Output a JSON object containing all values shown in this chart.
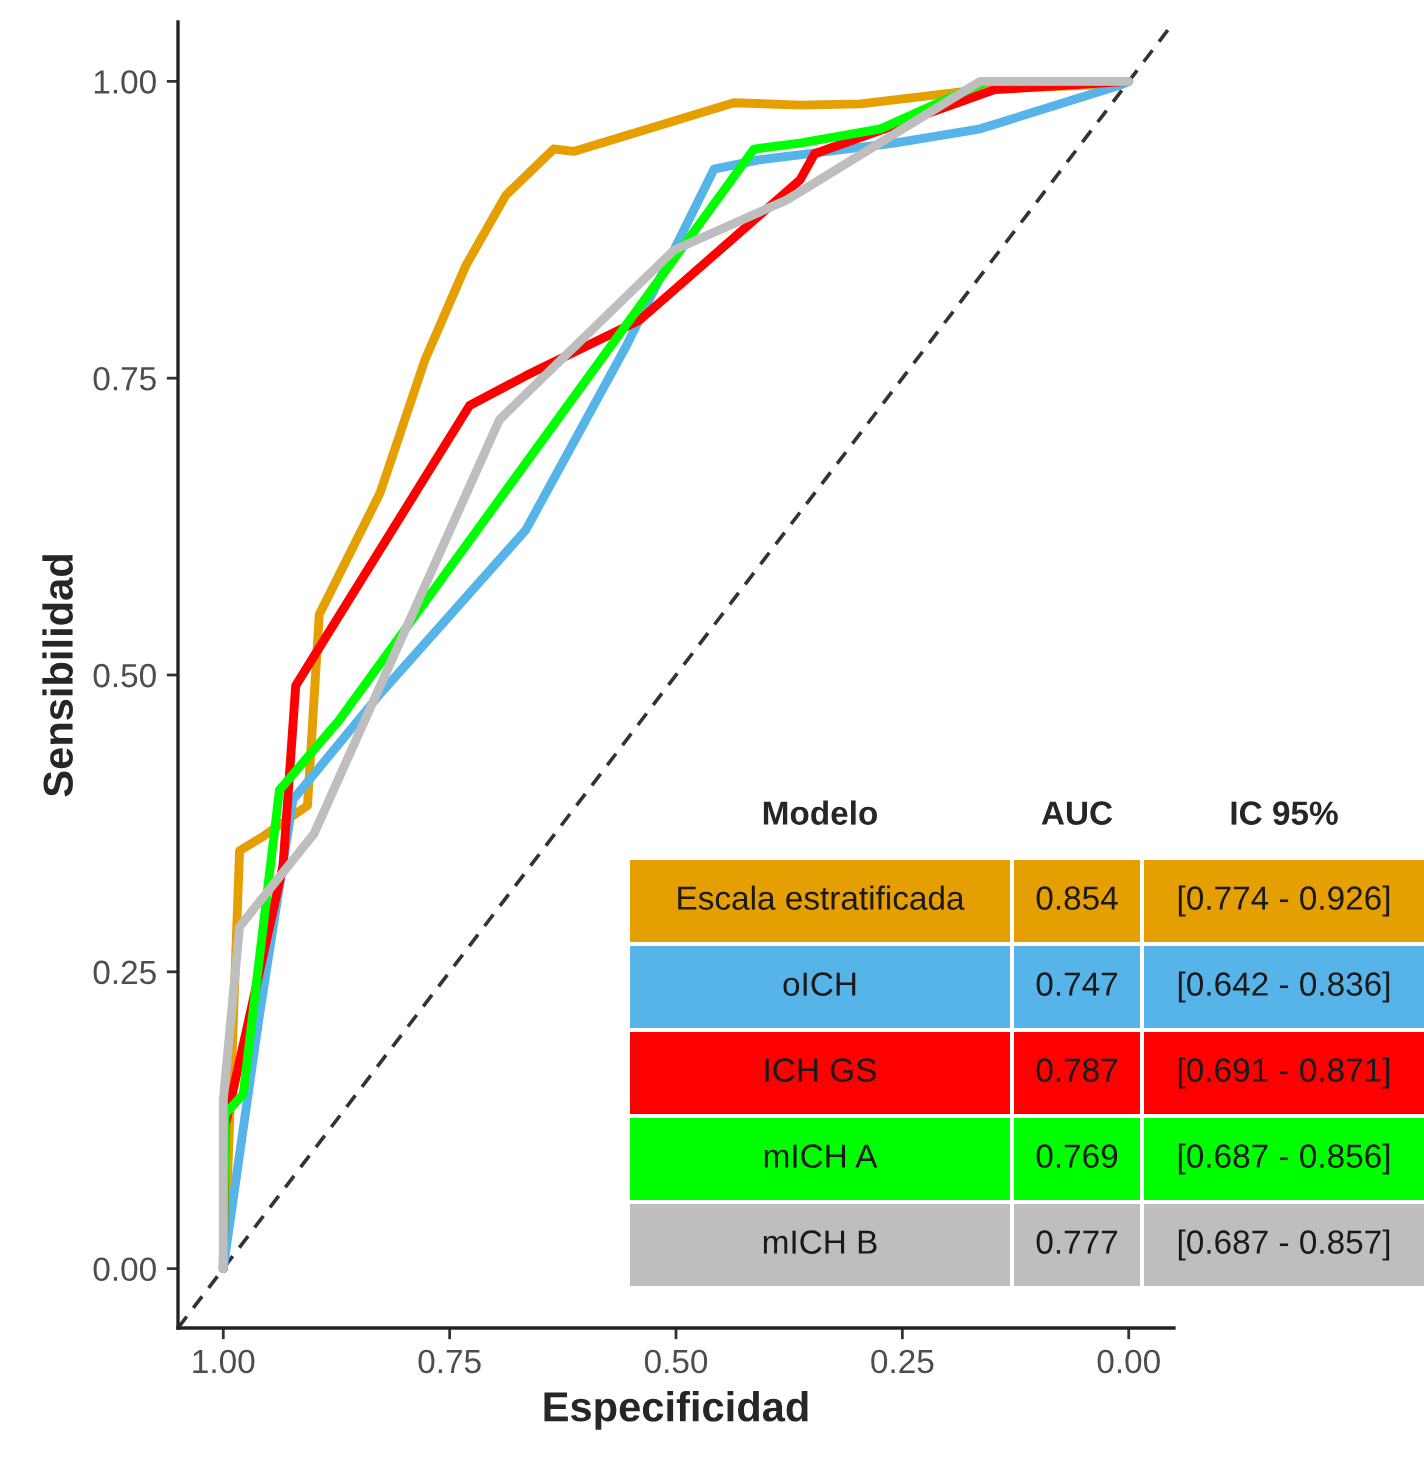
{
  "chart_data": {
    "type": "line",
    "xlabel": "Especificidad",
    "ylabel": "Sensibilidad",
    "xlim": [
      1.05,
      -0.05
    ],
    "ylim": [
      -0.05,
      1.05
    ],
    "xticks": [
      {
        "value": 1,
        "label": "1.00"
      },
      {
        "value": 0.75,
        "label": "0.75"
      },
      {
        "value": 0.5,
        "label": "0.50"
      },
      {
        "value": 0.25,
        "label": "0.25"
      },
      {
        "value": 0,
        "label": "0.00"
      }
    ],
    "yticks": [
      {
        "value": 0,
        "label": "0.00"
      },
      {
        "value": 0.25,
        "label": "0.25"
      },
      {
        "value": 0.5,
        "label": "0.50"
      },
      {
        "value": 0.75,
        "label": "0.75"
      },
      {
        "value": 1,
        "label": "1.00"
      }
    ],
    "grid": false,
    "legend": "bottom right",
    "legend_title": "Modelo",
    "line_style": "solid",
    "marker": "none",
    "series": [
      {
        "name": "Escala estratificada",
        "color": "#e69f00",
        "x": [
          1,
          0.998,
          0.982,
          0.956,
          0.907,
          0.894,
          0.827,
          0.777,
          0.732,
          0.688,
          0.635,
          0.613,
          0.436,
          0.363,
          0.296,
          0.164,
          0.009,
          0
        ],
        "values": [
          0,
          0.02,
          0.352,
          0.364,
          0.39,
          0.551,
          0.653,
          0.766,
          0.845,
          0.904,
          0.943,
          0.941,
          0.982,
          0.98,
          0.981,
          0.993,
          0.998,
          1
        ]
      },
      {
        "name": "oICH",
        "color": "#56b4e9",
        "x": [
          1,
          0.96,
          0.923,
          0.827,
          0.666,
          0.555,
          0.458,
          0.407,
          0.259,
          0.164,
          0.009,
          0
        ],
        "values": [
          0,
          0.214,
          0.395,
          0.484,
          0.622,
          0.777,
          0.926,
          0.934,
          0.948,
          0.96,
          0.997,
          1
        ]
      },
      {
        "name": "ICH GS",
        "color": "#ff0000",
        "x": [
          1,
          0.998,
          0.934,
          0.92,
          0.728,
          0.666,
          0.54,
          0.363,
          0.347,
          0.148,
          0
        ],
        "values": [
          0,
          0.12,
          0.339,
          0.491,
          0.727,
          0.752,
          0.799,
          0.917,
          0.939,
          0.993,
          1
        ]
      },
      {
        "name": "mICH A",
        "color": "#00ff00",
        "x": [
          1,
          0.998,
          0.978,
          0.938,
          0.872,
          0.414,
          0.363,
          0.274,
          0.157,
          0
        ],
        "values": [
          0,
          0.13,
          0.147,
          0.403,
          0.462,
          0.943,
          0.948,
          0.96,
          1,
          1
        ]
      },
      {
        "name": "mICH B",
        "color": "#bebebe",
        "x": [
          1,
          1,
          0.982,
          0.9,
          0.695,
          0.502,
          0.378,
          0.164,
          0
        ],
        "values": [
          0,
          0.142,
          0.288,
          0.366,
          0.715,
          0.858,
          0.9,
          1,
          1
        ]
      },
      {
        "color": "#333333",
        "line_style": "dashed",
        "x": [
          1.05,
          -0.05
        ],
        "values": [
          -0.05,
          1.05
        ]
      }
    ],
    "annotations": [
      "AUC",
      "IC 95%",
      "0.854",
      "[0.774 - 0.926]",
      "0.747",
      "[0.642 - 0.836]",
      "0.787",
      "[0.691 - 0.871]",
      "0.769",
      "[0.687 - 0.856]",
      "0.777",
      "[0.687 - 0.857]"
    ]
  }
}
